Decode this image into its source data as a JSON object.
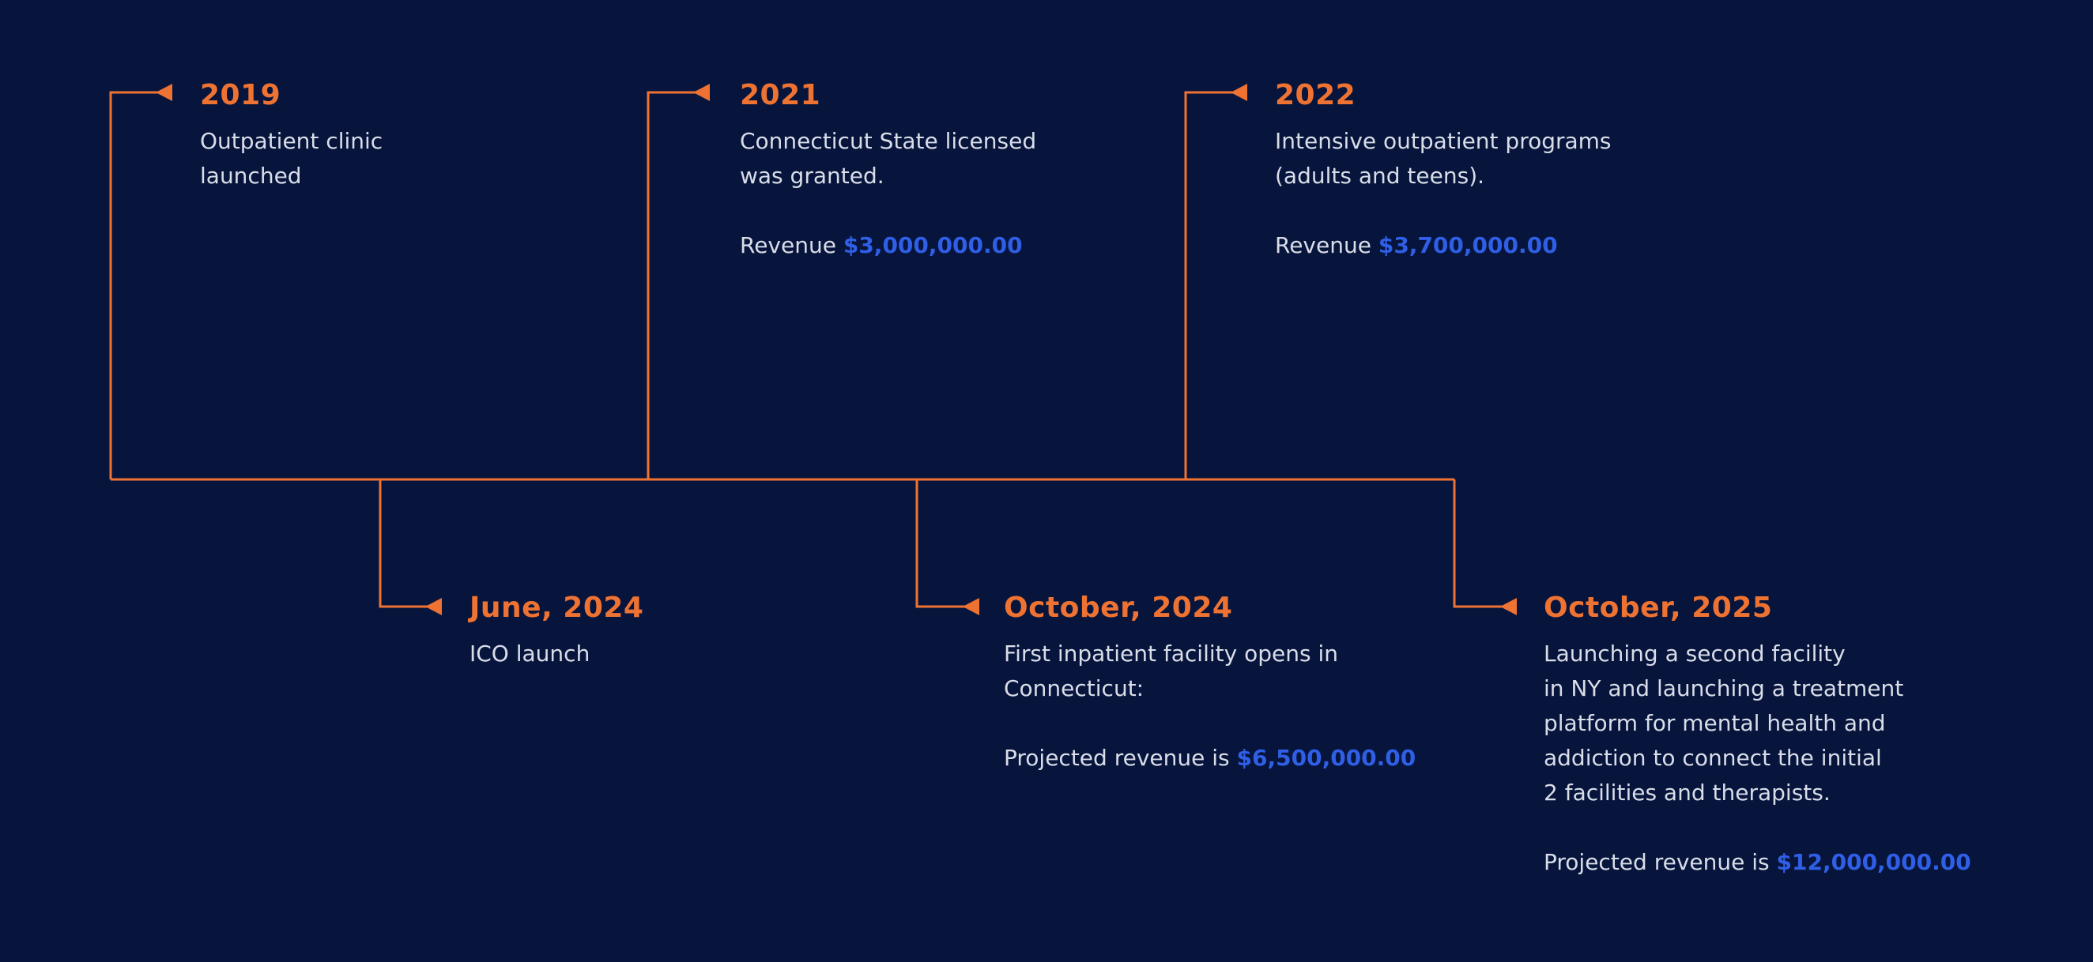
{
  "colors": {
    "background": "#07153d",
    "accent_orange": "#ee7333",
    "text": "#d9dde8",
    "amount_blue": "#2f5fe6"
  },
  "milestones": [
    {
      "year": "2019",
      "description": "Outpatient clinic\nlaunched",
      "revenue_prefix": "",
      "revenue_amount": ""
    },
    {
      "year": "2021",
      "description": "Connecticut State licensed\nwas granted.",
      "revenue_prefix": "Revenue ",
      "revenue_amount": "$3,000,000.00"
    },
    {
      "year": "2022",
      "description": "Intensive outpatient programs\n(adults and teens).",
      "revenue_prefix": "Revenue ",
      "revenue_amount": "$3,700,000.00"
    },
    {
      "year": "June, 2024",
      "description": "ICO launch",
      "revenue_prefix": "",
      "revenue_amount": ""
    },
    {
      "year": "October, 2024",
      "description": "First inpatient facility opens in\nConnecticut:",
      "revenue_prefix": "Projected revenue is ",
      "revenue_amount": "$6,500,000.00"
    },
    {
      "year": "October, 2025",
      "description": "Launching a second facility\nin NY and launching a treatment\nplatform for mental health and\naddiction to connect the initial\n2 facilities and therapists.",
      "revenue_prefix": "Projected revenue is ",
      "revenue_amount": "$12,000,000.00"
    }
  ]
}
